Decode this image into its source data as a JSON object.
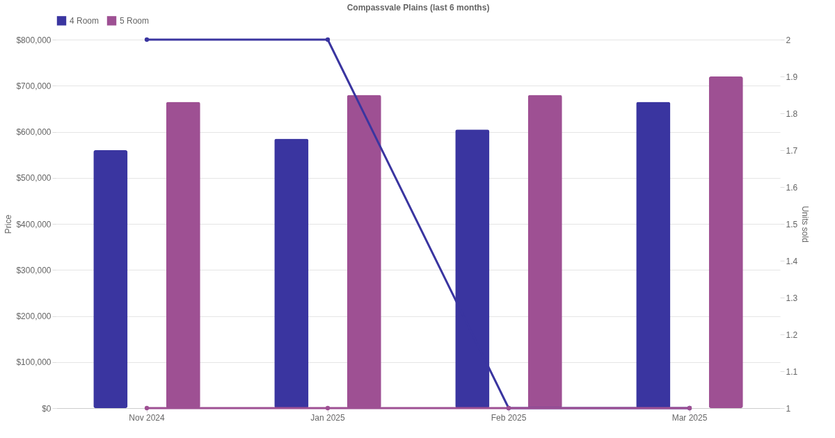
{
  "chart_data": {
    "type": "bar",
    "title": "Compassvale Plains (last 6 months)",
    "ylabel": "Price",
    "y2label": "Units sold",
    "categories": [
      "Nov 2024",
      "Jan 2025",
      "Feb 2025",
      "Mar 2025"
    ],
    "series": [
      {
        "name": "4 Room",
        "color": "#3a35a0",
        "values": [
          560000,
          585000,
          605000,
          665000
        ]
      },
      {
        "name": "5 Room",
        "color": "#9e5093",
        "values": [
          665000,
          680000,
          680000,
          720000
        ]
      },
      {
        "type": "line",
        "axis": "y2",
        "color": "#3a35a0",
        "values": [
          2,
          2,
          1,
          1
        ]
      },
      {
        "type": "line",
        "axis": "y2",
        "color": "#9e5093",
        "values": [
          1,
          1,
          1,
          1
        ]
      }
    ],
    "ylim": [
      0,
      800000
    ],
    "yticks": [
      {
        "value": 0,
        "label": "$0"
      },
      {
        "value": 100000,
        "label": "$100,000"
      },
      {
        "value": 200000,
        "label": "$200,000"
      },
      {
        "value": 300000,
        "label": "$300,000"
      },
      {
        "value": 400000,
        "label": "$400,000"
      },
      {
        "value": 500000,
        "label": "$500,000"
      },
      {
        "value": 600000,
        "label": "$600,000"
      },
      {
        "value": 700000,
        "label": "$700,000"
      },
      {
        "value": 800000,
        "label": "$800,000"
      }
    ],
    "y2lim": [
      1,
      2
    ],
    "y2ticks": [
      1,
      1.1,
      1.2,
      1.3,
      1.4,
      1.5,
      1.6,
      1.7,
      1.8,
      1.9,
      2
    ],
    "grid": "y",
    "legend": "top",
    "marker": "circle",
    "line_style": "solid"
  }
}
